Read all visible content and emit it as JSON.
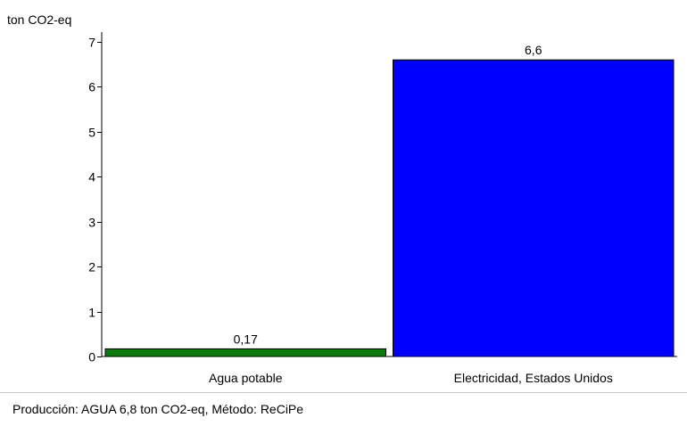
{
  "chart_data": {
    "type": "bar",
    "unit_label": "ton CO2-eq",
    "categories": [
      "Agua potable",
      "Electricidad, Estados Unidos"
    ],
    "values": [
      0.17,
      6.6
    ],
    "value_labels": [
      "0,17",
      "6,6"
    ],
    "colors": [
      "#0a7a0a",
      "#0000ff"
    ],
    "ylim": [
      0,
      7
    ],
    "yticks": [
      0,
      1,
      2,
      3,
      4,
      5,
      6,
      7
    ],
    "grid": false,
    "legend": "none"
  },
  "footer": {
    "text": "Producción:  AGUA  6,8 ton CO2-eq,  Método: ReCiPe"
  }
}
